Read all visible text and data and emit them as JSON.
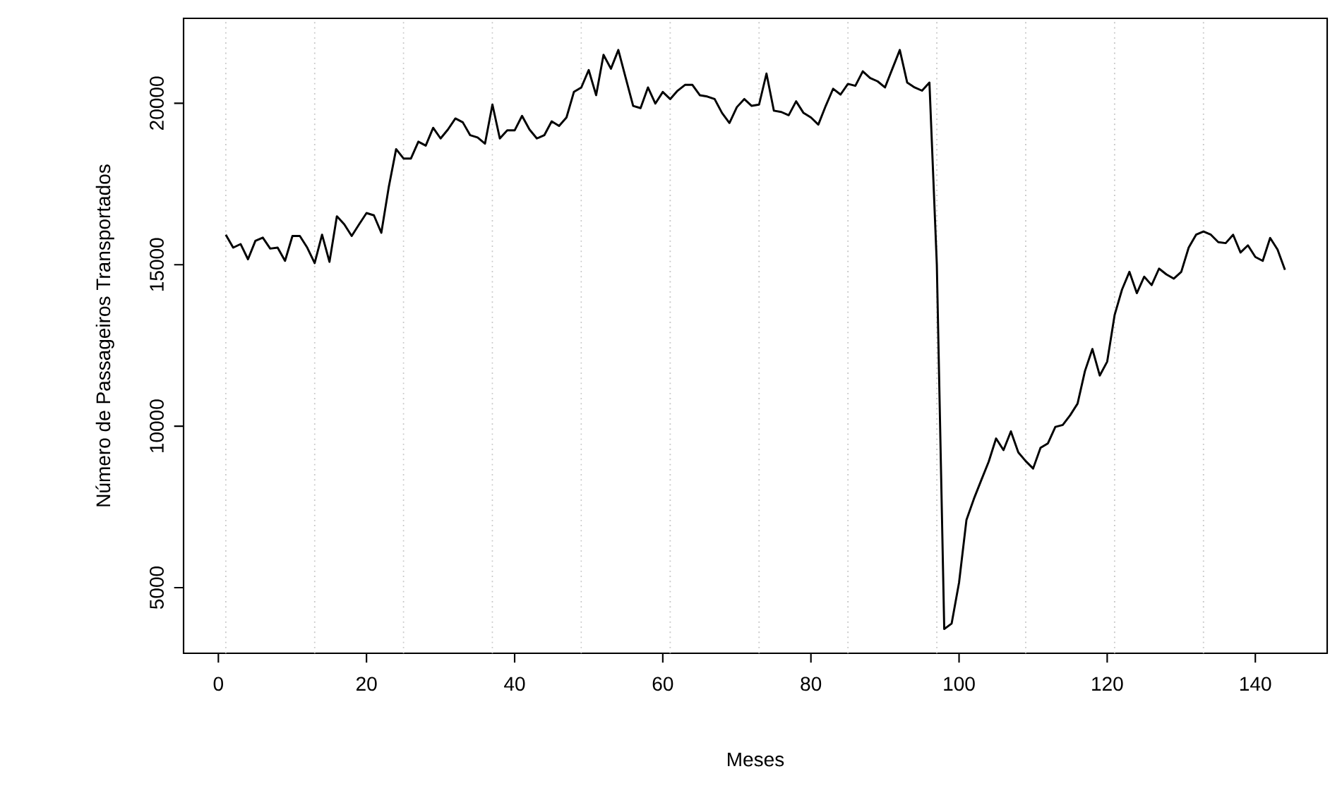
{
  "chart_data": {
    "type": "line",
    "xlabel": "Meses",
    "ylabel": "Número de Passageiros Transportados",
    "x": [
      1,
      2,
      3,
      4,
      5,
      6,
      7,
      8,
      9,
      10,
      11,
      12,
      13,
      14,
      15,
      16,
      17,
      18,
      19,
      20,
      21,
      22,
      23,
      24,
      25,
      26,
      27,
      28,
      29,
      30,
      31,
      32,
      33,
      34,
      35,
      36,
      37,
      38,
      39,
      40,
      41,
      42,
      43,
      44,
      45,
      46,
      47,
      48,
      49,
      50,
      51,
      52,
      53,
      54,
      55,
      56,
      57,
      58,
      59,
      60,
      61,
      62,
      63,
      64,
      65,
      66,
      67,
      68,
      69,
      70,
      71,
      72,
      73,
      74,
      75,
      76,
      77,
      78,
      79,
      80,
      81,
      82,
      83,
      84,
      85,
      86,
      87,
      88,
      89,
      90,
      91,
      92,
      93,
      94,
      95,
      96,
      97,
      98,
      99,
      100,
      101,
      102,
      103,
      104,
      105,
      106,
      107,
      108,
      109,
      110,
      111,
      112,
      113,
      114,
      115,
      116,
      117,
      118,
      119,
      120,
      121,
      122,
      123,
      124,
      125,
      126,
      127,
      128,
      129,
      130,
      131,
      132,
      133,
      134,
      135,
      136,
      137,
      138,
      139,
      140,
      141,
      142,
      143,
      144
    ],
    "series": [
      {
        "color": "#000000",
        "values": [
          15930,
          15530,
          15640,
          15170,
          15740,
          15840,
          15500,
          15530,
          15120,
          15890,
          15890,
          15530,
          15050,
          15930,
          15090,
          16500,
          16250,
          15890,
          16250,
          16600,
          16530,
          15990,
          17400,
          18580,
          18290,
          18290,
          18810,
          18690,
          19240,
          18910,
          19190,
          19530,
          19410,
          19010,
          18940,
          18750,
          19960,
          18910,
          19160,
          19160,
          19610,
          19190,
          18910,
          19010,
          19440,
          19300,
          19560,
          20350,
          20490,
          21030,
          20250,
          21500,
          21070,
          21650,
          20780,
          19920,
          19850,
          20490,
          19990,
          20350,
          20130,
          20390,
          20570,
          20570,
          20250,
          20210,
          20130,
          19700,
          19390,
          19880,
          20130,
          19920,
          19960,
          20920,
          19770,
          19730,
          19630,
          20060,
          19700,
          19560,
          19340,
          19920,
          20450,
          20270,
          20600,
          20540,
          20990,
          20780,
          20680,
          20490,
          21070,
          21650,
          20640,
          20490,
          20390,
          20640,
          15000,
          3720,
          3890,
          5160,
          7100,
          7750,
          8330,
          8900,
          9620,
          9260,
          9840,
          9190,
          8920,
          8690,
          9330,
          9470,
          9980,
          10040,
          10340,
          10700,
          11710,
          12390,
          11570,
          12000,
          13440,
          14230,
          14780,
          14120,
          14630,
          14370,
          14880,
          14700,
          14570,
          14780,
          15530,
          15930,
          16030,
          15930,
          15700,
          15670,
          15930,
          15380,
          15600,
          15240,
          15120,
          15830,
          15470,
          14840
        ]
      }
    ],
    "xlim": [
      -4.7,
      149.7
    ],
    "ylim": [
      2970,
      22630
    ],
    "xticks": [
      0,
      20,
      40,
      60,
      80,
      100,
      120,
      140
    ],
    "yticks": [
      5000,
      10000,
      15000,
      20000
    ],
    "marker": "none",
    "line_style": "solid",
    "ref_lines": [
      {
        "axis": "x",
        "value": 1,
        "color": "#c8c8c8",
        "line_style": "dotted"
      },
      {
        "axis": "x",
        "value": 13,
        "color": "#c8c8c8",
        "line_style": "dotted"
      },
      {
        "axis": "x",
        "value": 25,
        "color": "#c8c8c8",
        "line_style": "dotted"
      },
      {
        "axis": "x",
        "value": 37,
        "color": "#c8c8c8",
        "line_style": "dotted"
      },
      {
        "axis": "x",
        "value": 49,
        "color": "#c8c8c8",
        "line_style": "dotted"
      },
      {
        "axis": "x",
        "value": 61,
        "color": "#c8c8c8",
        "line_style": "dotted"
      },
      {
        "axis": "x",
        "value": 73,
        "color": "#c8c8c8",
        "line_style": "dotted"
      },
      {
        "axis": "x",
        "value": 85,
        "color": "#c8c8c8",
        "line_style": "dotted"
      },
      {
        "axis": "x",
        "value": 97,
        "color": "#c8c8c8",
        "line_style": "dotted"
      },
      {
        "axis": "x",
        "value": 109,
        "color": "#c8c8c8",
        "line_style": "dotted"
      },
      {
        "axis": "x",
        "value": 121,
        "color": "#c8c8c8",
        "line_style": "dotted"
      },
      {
        "axis": "x",
        "value": 133,
        "color": "#c8c8c8",
        "line_style": "dotted"
      }
    ]
  }
}
